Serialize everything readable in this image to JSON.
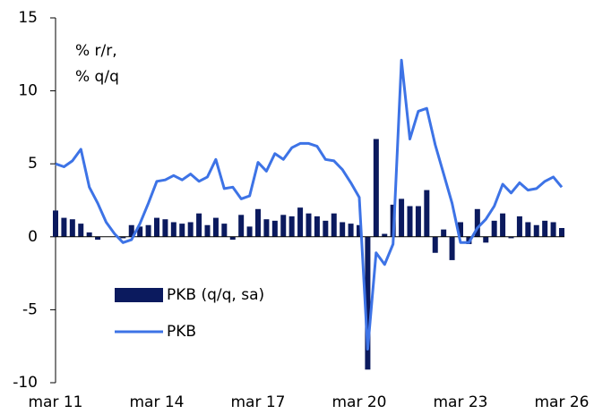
{
  "chart_data": {
    "type": "bar_line",
    "annotation": [
      "% r/r,",
      "% q/q"
    ],
    "categories": [
      "mar 11",
      null,
      null,
      null,
      null,
      null,
      null,
      null,
      null,
      null,
      null,
      null,
      "mar 14",
      null,
      null,
      null,
      null,
      null,
      null,
      null,
      null,
      null,
      null,
      null,
      "mar 17",
      null,
      null,
      null,
      null,
      null,
      null,
      null,
      null,
      null,
      null,
      null,
      "mar 20",
      null,
      null,
      null,
      null,
      null,
      null,
      null,
      null,
      null,
      null,
      null,
      "mar 23",
      null,
      null,
      null,
      null,
      null,
      null,
      null,
      null,
      null,
      null,
      null,
      "mar 26"
    ],
    "series": [
      {
        "name": "PKB (q/q, sa)",
        "kind": "bar",
        "color": "#0b1a5e",
        "values": [
          1.8,
          1.3,
          1.2,
          0.9,
          0.3,
          -0.2,
          0.0,
          0.0,
          -0.1,
          0.8,
          0.7,
          0.8,
          1.3,
          1.2,
          1.0,
          0.9,
          1.0,
          1.6,
          0.8,
          1.3,
          0.9,
          -0.2,
          1.5,
          0.7,
          1.9,
          1.2,
          1.1,
          1.5,
          1.4,
          2.0,
          1.6,
          1.4,
          1.1,
          1.6,
          1.0,
          0.9,
          0.8,
          -9.1,
          6.7,
          0.2,
          2.2,
          2.6,
          2.1,
          2.1,
          3.2,
          -1.1,
          0.5,
          -1.6,
          1.0,
          -0.5,
          1.9,
          -0.4,
          1.1,
          1.6,
          -0.1,
          1.4,
          1.0,
          0.8,
          1.1,
          1.0,
          0.6
        ]
      },
      {
        "name": "PKB",
        "kind": "line",
        "color": "#3d73e6",
        "values": [
          5.0,
          4.8,
          5.2,
          6.0,
          3.4,
          2.3,
          1.0,
          0.2,
          -0.4,
          -0.2,
          0.9,
          2.3,
          3.8,
          3.9,
          4.2,
          3.9,
          4.3,
          3.8,
          4.1,
          5.3,
          3.3,
          3.4,
          2.6,
          2.8,
          5.1,
          4.5,
          5.7,
          5.3,
          6.1,
          6.4,
          6.4,
          6.2,
          5.3,
          5.2,
          4.6,
          3.7,
          2.7,
          -7.7,
          -1.1,
          -1.9,
          -0.5,
          12.1,
          6.7,
          8.6,
          8.8,
          6.3,
          4.3,
          2.3,
          -0.4,
          -0.4,
          0.6,
          1.2,
          2.1,
          3.6,
          3.0,
          3.7,
          3.2,
          3.3,
          3.8,
          4.1,
          3.4
        ]
      }
    ],
    "ylim": [
      -10,
      15
    ],
    "yticks": [
      -10,
      -5,
      0,
      5,
      10,
      15
    ]
  }
}
